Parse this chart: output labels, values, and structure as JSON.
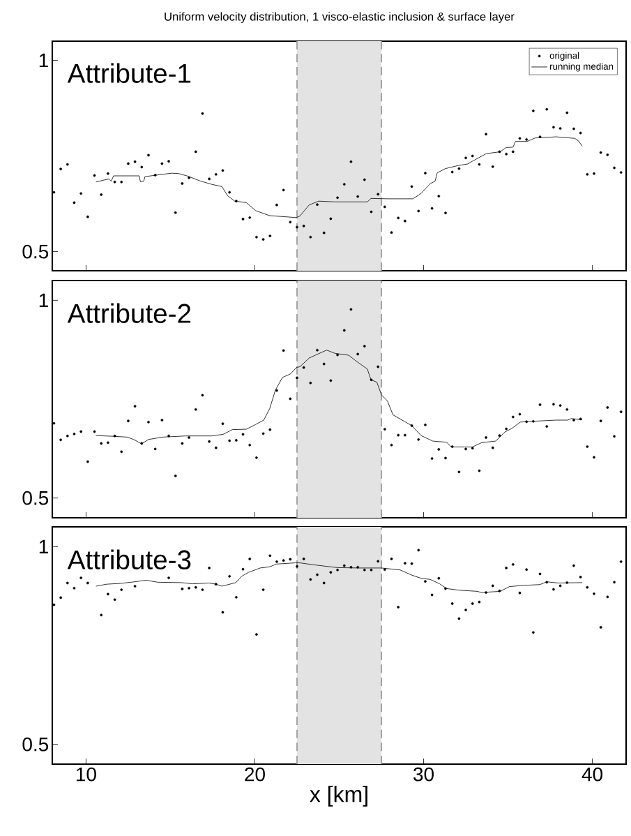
{
  "chart_data": [
    {
      "type": "scatter",
      "title": "Uniform velocity distribution, 1 visco-elastic inclusion & surface layer",
      "annotations": [
        "Attribute-1"
      ],
      "x": [
        8.1,
        8.5,
        8.9,
        9.3,
        9.7,
        10.1,
        10.5,
        10.9,
        11.3,
        11.7,
        12.1,
        12.5,
        12.9,
        13.3,
        13.7,
        14.1,
        14.5,
        14.9,
        15.3,
        15.7,
        16.1,
        16.5,
        16.9,
        17.3,
        17.7,
        18.1,
        18.5,
        18.9,
        19.3,
        19.7,
        20.1,
        20.5,
        20.9,
        21.3,
        21.7,
        22.1,
        22.5,
        22.9,
        23.3,
        23.7,
        24.1,
        24.5,
        24.9,
        25.3,
        25.7,
        26.1,
        26.5,
        26.9,
        27.3,
        27.7,
        28.1,
        28.5,
        28.9,
        29.3,
        29.7,
        30.1,
        30.5,
        30.9,
        31.3,
        31.7,
        32.1,
        32.5,
        32.9,
        33.3,
        33.7,
        34.1,
        34.5,
        34.9,
        35.3,
        35.7,
        36.1,
        36.5,
        36.9,
        37.3,
        37.7,
        38.1,
        38.5,
        38.9,
        39.3,
        39.7,
        40.1,
        40.5,
        40.9,
        41.3,
        41.7
      ],
      "series": [
        {
          "name": "original",
          "marker": "circle",
          "color": "#000000",
          "values": [
            0.655,
            0.716,
            0.728,
            0.628,
            0.652,
            0.591,
            0.699,
            0.649,
            0.704,
            0.682,
            0.682,
            0.73,
            0.735,
            0.721,
            0.752,
            0.7,
            0.73,
            0.736,
            0.602,
            0.678,
            0.693,
            0.761,
            0.861,
            0.69,
            0.702,
            0.712,
            0.655,
            0.632,
            0.585,
            0.589,
            0.538,
            0.532,
            0.541,
            0.622,
            0.661,
            0.577,
            0.564,
            0.567,
            0.538,
            0.623,
            0.549,
            0.586,
            0.641,
            0.676,
            0.735,
            0.644,
            0.688,
            0.604,
            0.65,
            0.617,
            0.55,
            0.588,
            0.58,
            0.67,
            0.606,
            0.705,
            0.613,
            0.645,
            0.601,
            0.708,
            0.717,
            0.745,
            0.75,
            0.728,
            0.807,
            0.722,
            0.761,
            0.755,
            0.761,
            0.796,
            0.793,
            0.868,
            0.8,
            0.872,
            0.825,
            0.822,
            0.863,
            0.821,
            0.81,
            0.702,
            0.704,
            0.759,
            0.753,
            0.719,
            0.707
          ]
        },
        {
          "name": "running median",
          "type": "line",
          "line_style": "solid",
          "color": "#222222",
          "x": [
            10.59,
            11.35,
            11.49,
            11.63,
            13.15,
            13.22,
            13.42,
            13.49,
            14.53,
            15.08,
            15.49,
            16.05,
            16.74,
            17.43,
            18.05,
            18.39,
            18.81,
            19.5,
            20.05,
            20.88,
            22.46,
            22.67,
            23.22,
            23.78,
            24.74,
            26.67,
            26.88,
            27.92,
            29.37,
            29.85,
            30.4,
            30.68,
            30.81,
            31.3,
            32.06,
            32.61,
            32.88,
            33.71,
            34.54,
            34.89,
            35.3,
            35.44,
            36.13,
            36.61,
            37.85,
            38.96,
            39.16,
            39.4
          ],
          "values": [
            0.682,
            0.69,
            0.684,
            0.698,
            0.698,
            0.683,
            0.684,
            0.696,
            0.702,
            0.705,
            0.704,
            0.697,
            0.685,
            0.676,
            0.67,
            0.646,
            0.632,
            0.628,
            0.607,
            0.594,
            0.589,
            0.593,
            0.622,
            0.632,
            0.63,
            0.63,
            0.639,
            0.638,
            0.638,
            0.652,
            0.678,
            0.684,
            0.706,
            0.717,
            0.725,
            0.729,
            0.736,
            0.756,
            0.761,
            0.772,
            0.773,
            0.788,
            0.788,
            0.797,
            0.8,
            0.796,
            0.79,
            0.776
          ]
        }
      ],
      "xlim": [
        8,
        42
      ],
      "ylim": [
        0.45,
        1.05
      ],
      "xticks": [
        10,
        20,
        30,
        40
      ],
      "yticks": [
        0.5,
        1
      ],
      "tick_labels": "y",
      "legend": "top right",
      "bands": [
        {
          "axis": "x",
          "from": 22.5,
          "to": 27.5,
          "color": "#e3e3e3"
        }
      ],
      "ref_lines": [
        {
          "axis": "x",
          "value": 22.5,
          "color": "#999999",
          "line_style": "dashed"
        },
        {
          "axis": "x",
          "value": 27.5,
          "color": "#999999",
          "line_style": "dashed"
        }
      ]
    },
    {
      "type": "scatter",
      "annotations": [
        "Attribute-2"
      ],
      "x": [
        8.1,
        8.5,
        8.9,
        9.3,
        9.7,
        10.1,
        10.5,
        10.9,
        11.3,
        11.7,
        12.1,
        12.5,
        12.9,
        13.3,
        13.7,
        14.1,
        14.5,
        14.9,
        15.3,
        15.7,
        16.1,
        16.5,
        16.9,
        17.3,
        17.7,
        18.1,
        18.5,
        18.9,
        19.3,
        19.7,
        20.1,
        20.5,
        20.9,
        21.3,
        21.7,
        22.1,
        22.5,
        22.9,
        23.3,
        23.7,
        24.1,
        24.5,
        24.9,
        25.3,
        25.7,
        26.1,
        26.5,
        26.9,
        27.3,
        27.7,
        28.1,
        28.5,
        28.9,
        29.3,
        29.7,
        30.1,
        30.5,
        30.9,
        31.3,
        31.7,
        32.1,
        32.5,
        32.9,
        33.3,
        33.7,
        34.1,
        34.5,
        34.9,
        35.3,
        35.7,
        36.1,
        36.5,
        36.9,
        37.3,
        37.7,
        38.1,
        38.5,
        38.9,
        39.3,
        39.7,
        40.1,
        40.5,
        40.9,
        41.3,
        41.7
      ],
      "series": [
        {
          "marker": "circle",
          "color": "#000000",
          "values": [
            0.689,
            0.647,
            0.657,
            0.662,
            0.668,
            0.592,
            0.668,
            0.638,
            0.64,
            0.657,
            0.617,
            0.695,
            0.732,
            0.638,
            0.692,
            0.624,
            0.697,
            0.657,
            0.556,
            0.638,
            0.653,
            0.724,
            0.76,
            0.643,
            0.627,
            0.688,
            0.645,
            0.646,
            0.661,
            0.634,
            0.602,
            0.663,
            0.673,
            0.772,
            0.873,
            0.751,
            0.804,
            0.83,
            0.791,
            0.874,
            0.839,
            0.797,
            0.862,
            0.924,
            0.977,
            0.864,
            0.884,
            0.799,
            0.832,
            0.674,
            0.634,
            0.659,
            0.659,
            0.683,
            0.648,
            0.685,
            0.6,
            0.623,
            0.601,
            0.63,
            0.566,
            0.624,
            0.626,
            0.569,
            0.653,
            0.627,
            0.658,
            0.675,
            0.705,
            0.712,
            0.693,
            0.694,
            0.736,
            0.681,
            0.737,
            0.734,
            0.724,
            0.697,
            0.7,
            0.63,
            0.603,
            0.695,
            0.729,
            0.656,
            0.718
          ]
        },
        {
          "type": "line",
          "line_style": "solid",
          "color": "#222222",
          "x": [
            10.59,
            11.63,
            12.46,
            12.87,
            13.29,
            13.7,
            14.53,
            15.91,
            17.43,
            18.12,
            18.67,
            19.5,
            20.05,
            20.53,
            20.88,
            21.22,
            21.64,
            22.12,
            22.46,
            22.67,
            23.22,
            23.78,
            24.26,
            24.74,
            25.57,
            25.98,
            26.67,
            26.88,
            27.23,
            27.5,
            27.85,
            28.19,
            28.61,
            29.3,
            29.85,
            30.54,
            31.37,
            31.64,
            32.88,
            33.44,
            34.27,
            34.82,
            35.23,
            35.73,
            36.47,
            37.85,
            38.54,
            38.75,
            39.4
          ],
          "values": [
            0.658,
            0.656,
            0.654,
            0.647,
            0.637,
            0.648,
            0.654,
            0.657,
            0.657,
            0.661,
            0.673,
            0.674,
            0.686,
            0.697,
            0.726,
            0.773,
            0.805,
            0.814,
            0.83,
            0.832,
            0.854,
            0.865,
            0.874,
            0.866,
            0.861,
            0.847,
            0.826,
            0.799,
            0.793,
            0.761,
            0.746,
            0.71,
            0.7,
            0.683,
            0.658,
            0.644,
            0.641,
            0.629,
            0.629,
            0.64,
            0.644,
            0.667,
            0.676,
            0.692,
            0.694,
            0.697,
            0.697,
            0.701,
            0.698
          ]
        }
      ],
      "xlim": [
        8,
        42
      ],
      "ylim": [
        0.45,
        1.05
      ],
      "xticks": [
        10,
        20,
        30,
        40
      ],
      "yticks": [
        0.5,
        1
      ],
      "tick_labels": "y",
      "bands": [
        {
          "axis": "x",
          "from": 22.5,
          "to": 27.5,
          "color": "#e3e3e3"
        }
      ],
      "ref_lines": [
        {
          "axis": "x",
          "value": 22.5,
          "color": "#999999",
          "line_style": "dashed"
        },
        {
          "axis": "x",
          "value": 27.5,
          "color": "#999999",
          "line_style": "dashed"
        }
      ]
    },
    {
      "type": "scatter",
      "annotations": [
        "Attribute-3"
      ],
      "xlabel": "x [km]",
      "x": [
        8.1,
        8.5,
        8.9,
        9.3,
        9.7,
        10.1,
        10.5,
        10.9,
        11.3,
        11.7,
        12.1,
        12.5,
        12.9,
        13.3,
        13.7,
        14.1,
        14.5,
        14.9,
        15.3,
        15.7,
        16.1,
        16.5,
        16.9,
        17.3,
        17.7,
        18.1,
        18.5,
        18.9,
        19.3,
        19.7,
        20.1,
        20.5,
        20.9,
        21.3,
        21.7,
        22.1,
        22.5,
        22.9,
        23.3,
        23.7,
        24.1,
        24.5,
        24.9,
        25.3,
        25.7,
        26.1,
        26.5,
        26.9,
        27.3,
        27.7,
        28.1,
        28.5,
        28.9,
        29.3,
        29.7,
        30.1,
        30.5,
        30.9,
        31.3,
        31.7,
        32.1,
        32.5,
        32.9,
        33.3,
        33.7,
        34.1,
        34.5,
        34.9,
        35.3,
        35.7,
        36.1,
        36.5,
        36.9,
        37.3,
        37.7,
        38.1,
        38.5,
        38.9,
        39.3,
        39.7,
        40.1,
        40.5,
        40.9,
        41.3,
        41.7
      ],
      "series": [
        {
          "marker": "circle",
          "color": "#000000",
          "values": [
            0.853,
            0.871,
            0.908,
            0.895,
            0.921,
            0.908,
            null,
            0.827,
            0.88,
            0.866,
            0.891,
            null,
            0.9,
            null,
            null,
            null,
            null,
            0.921,
            null,
            0.893,
            0.895,
            0.897,
            0.891,
            0.946,
            0.905,
            0.834,
            0.925,
            0.872,
            0.943,
            0.969,
            0.778,
            0.891,
            0.977,
            0.962,
            0.965,
            0.968,
            0.95,
            0.969,
            0.917,
            0.929,
            0.908,
            0.935,
            0.941,
            0.952,
            0.948,
            0.948,
            0.941,
            0.941,
            0.963,
            0.942,
            0.969,
            0.847,
            0.958,
            0.957,
            0.991,
            0.912,
            0.878,
            0.92,
            0.894,
            0.856,
            0.818,
            0.84,
            0.856,
            0.86,
            0.884,
            0.901,
            0.888,
            0.946,
            0.955,
            0.883,
            0.942,
            0.783,
            0.931,
            0.91,
            0.892,
            0.901,
            0.909,
            0.952,
            0.923,
            0.897,
            0.881,
            0.796,
            0.873,
            0.91,
            0.962
          ]
        },
        {
          "type": "line",
          "line_style": "solid",
          "color": "#222222",
          "x": [
            10.59,
            11.22,
            12.04,
            12.87,
            13.56,
            14.25,
            15.63,
            16.32,
            17.29,
            17.7,
            18.05,
            18.88,
            19.22,
            19.63,
            20.32,
            20.88,
            21.29,
            22.4,
            22.67,
            23.5,
            24.88,
            26.12,
            27.5,
            28.61,
            29.3,
            29.85,
            30.4,
            30.95,
            31.37,
            32.06,
            33.16,
            33.44,
            34.54,
            35.09,
            35.92,
            36.89,
            37.3,
            37.99,
            39.4
          ],
          "values": [
            0.9,
            0.905,
            0.907,
            0.911,
            0.915,
            0.91,
            0.909,
            0.906,
            0.908,
            0.905,
            0.9,
            0.909,
            0.925,
            0.935,
            0.946,
            0.949,
            0.956,
            0.959,
            0.959,
            0.954,
            0.947,
            0.946,
            0.946,
            0.941,
            0.928,
            0.92,
            0.917,
            0.906,
            0.894,
            0.89,
            0.887,
            0.884,
            0.887,
            0.899,
            0.902,
            0.904,
            0.911,
            0.908,
            0.909
          ]
        }
      ],
      "xlim": [
        8,
        42
      ],
      "ylim": [
        0.45,
        1.05
      ],
      "xticks": [
        10,
        20,
        30,
        40
      ],
      "yticks": [
        0.5,
        1
      ],
      "bands": [
        {
          "axis": "x",
          "from": 22.5,
          "to": 27.5,
          "color": "#e3e3e3"
        }
      ],
      "ref_lines": [
        {
          "axis": "x",
          "value": 22.5,
          "color": "#999999",
          "line_style": "dashed"
        },
        {
          "axis": "x",
          "value": 27.5,
          "color": "#999999",
          "line_style": "dashed"
        }
      ]
    }
  ]
}
